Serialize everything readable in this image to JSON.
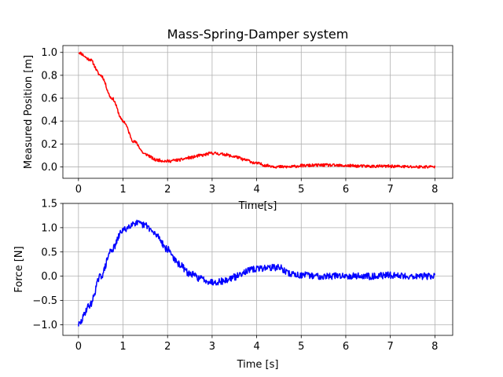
{
  "chart_data": [
    {
      "type": "line",
      "title": "Mass-Spring-Damper system",
      "xlabel": "Time[s]",
      "ylabel": "Measured Position [m]",
      "xlim": [
        -0.35,
        8.4
      ],
      "ylim": [
        -0.1,
        1.06
      ],
      "xticks": [
        0,
        1,
        2,
        3,
        4,
        5,
        6,
        7,
        8
      ],
      "xtick_labels": [
        "0",
        "1",
        "2",
        "3",
        "4",
        "5",
        "6",
        "7",
        "8"
      ],
      "yticks": [
        0.0,
        0.2,
        0.4,
        0.6,
        0.8,
        1.0
      ],
      "ytick_labels": [
        "0.0",
        "0.2",
        "0.4",
        "0.6",
        "0.8",
        "1.0"
      ],
      "grid": true,
      "series": [
        {
          "color": "#ff0000",
          "x": [
            0,
            0.25,
            0.5,
            0.75,
            1.0,
            1.25,
            1.5,
            1.75,
            2.0,
            2.25,
            2.5,
            2.75,
            3.0,
            3.25,
            3.5,
            3.75,
            4.0,
            4.25,
            4.5,
            4.75,
            5.0,
            5.5,
            6.0,
            6.5,
            7.0,
            7.5,
            8.0
          ],
          "values": [
            1.0,
            0.94,
            0.8,
            0.6,
            0.4,
            0.22,
            0.11,
            0.06,
            0.05,
            0.06,
            0.08,
            0.1,
            0.12,
            0.11,
            0.09,
            0.06,
            0.03,
            0.01,
            0.0,
            0.0,
            0.01,
            0.015,
            0.01,
            0.005,
            0.005,
            0.0,
            0.0
          ]
        }
      ]
    },
    {
      "type": "line",
      "title": "",
      "xlabel": "Time [s]",
      "ylabel": "Force [N]",
      "xlim": [
        -0.35,
        8.4
      ],
      "ylim": [
        -1.22,
        1.5
      ],
      "xticks": [
        0,
        1,
        2,
        3,
        4,
        5,
        6,
        7,
        8
      ],
      "xtick_labels": [
        "0",
        "1",
        "2",
        "3",
        "4",
        "5",
        "6",
        "7",
        "8"
      ],
      "yticks": [
        -1.0,
        -0.5,
        0.0,
        0.5,
        1.0,
        1.5
      ],
      "ytick_labels": [
        "−1.0",
        "−0.5",
        "0.0",
        "0.5",
        "1.0",
        "1.5"
      ],
      "grid": true,
      "series": [
        {
          "color": "#0000ff",
          "x": [
            0,
            0.25,
            0.5,
            0.75,
            1.0,
            1.25,
            1.5,
            1.75,
            2.0,
            2.25,
            2.5,
            2.75,
            3.0,
            3.25,
            3.5,
            3.75,
            4.0,
            4.25,
            4.5,
            4.75,
            5.0,
            5.5,
            6.0,
            6.5,
            7.0,
            7.5,
            8.0
          ],
          "values": [
            -1.0,
            -0.6,
            0.0,
            0.55,
            0.95,
            1.1,
            1.05,
            0.85,
            0.55,
            0.25,
            0.05,
            -0.05,
            -0.12,
            -0.1,
            -0.02,
            0.1,
            0.15,
            0.18,
            0.18,
            0.05,
            0.02,
            0.0,
            0.01,
            0.0,
            0.02,
            0.0,
            0.0
          ]
        }
      ]
    }
  ]
}
